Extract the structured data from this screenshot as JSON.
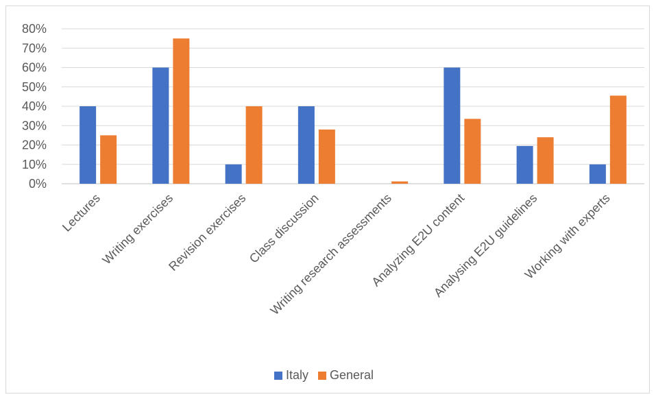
{
  "chart_data": {
    "type": "bar",
    "categories": [
      "Lectures",
      "Writing exercises",
      "Revision exercises",
      "Class discussion",
      "Writing research assessments",
      "Analyzing E2U content",
      "Analysing E2U guidelines",
      "Working with experts"
    ],
    "series": [
      {
        "name": "Italy",
        "color": "#4472C4",
        "values": [
          40,
          60,
          10,
          40,
          0,
          60,
          19.5,
          10
        ]
      },
      {
        "name": "General",
        "color": "#ED7D31",
        "values": [
          25,
          75,
          40,
          28,
          1.2,
          33.5,
          24,
          45.5
        ]
      }
    ],
    "ylim": [
      0,
      80
    ],
    "yticks": [
      "0%",
      "10%",
      "20%",
      "30%",
      "40%",
      "50%",
      "60%",
      "70%",
      "80%"
    ],
    "grid": true,
    "legend_position": "bottom"
  }
}
